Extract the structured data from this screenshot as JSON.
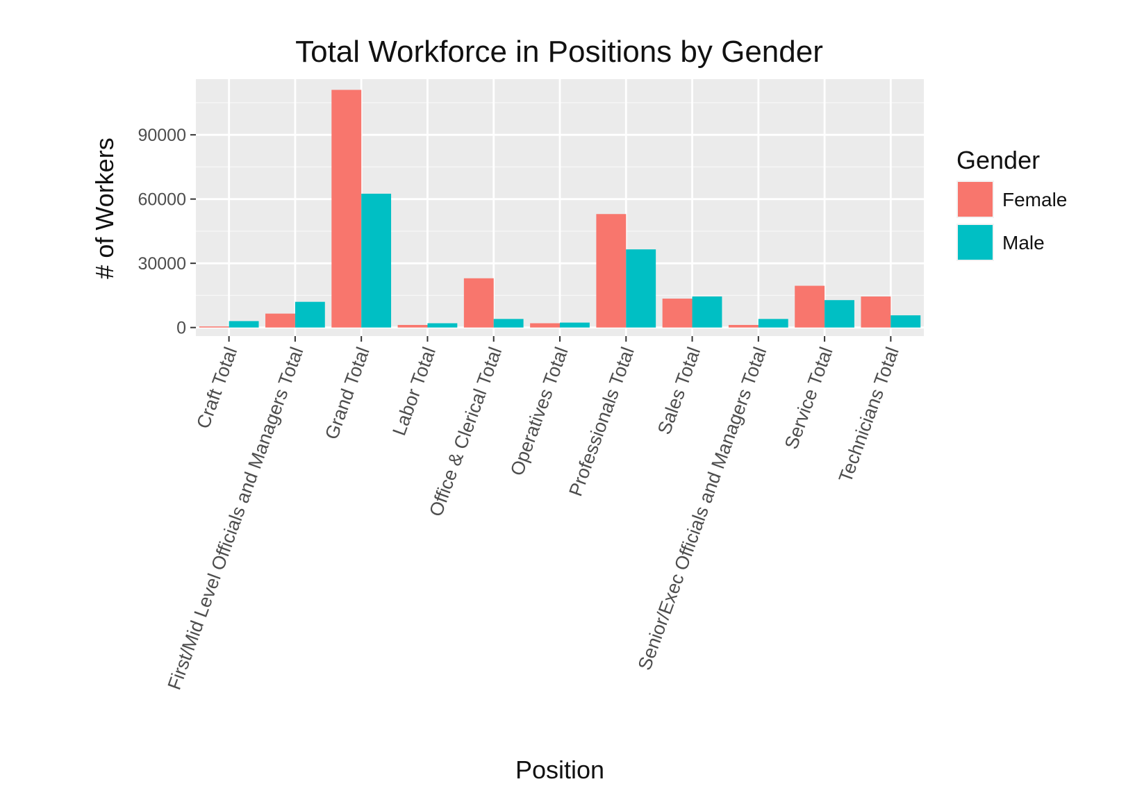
{
  "chart_data": {
    "type": "bar",
    "title": "Total Workforce in Positions by Gender",
    "xlabel": "Position",
    "ylabel": "# of Workers",
    "ylim": [
      -4000,
      116000
    ],
    "yticks": [
      0,
      30000,
      60000,
      90000
    ],
    "grid": true,
    "legend": {
      "title": "Gender",
      "placement": "right"
    },
    "categories": [
      "Craft Total",
      "First/Mid Level Officials and Managers Total",
      "Grand Total",
      "Labor Total",
      "Office & Clerical Total",
      "Operatives Total",
      "Professionals Total",
      "Sales Total",
      "Senior/Exec Officials and Managers Total",
      "Service Total",
      "Technicians Total"
    ],
    "series": [
      {
        "name": "Female",
        "color": "#f8766d",
        "values": [
          500,
          6500,
          111000,
          1200,
          23000,
          2000,
          53000,
          13500,
          1200,
          19500,
          14500
        ]
      },
      {
        "name": "Male",
        "color": "#00bfc4",
        "values": [
          3000,
          12000,
          62500,
          2000,
          4000,
          2300,
          36500,
          14500,
          4000,
          12800,
          5700
        ]
      }
    ]
  }
}
